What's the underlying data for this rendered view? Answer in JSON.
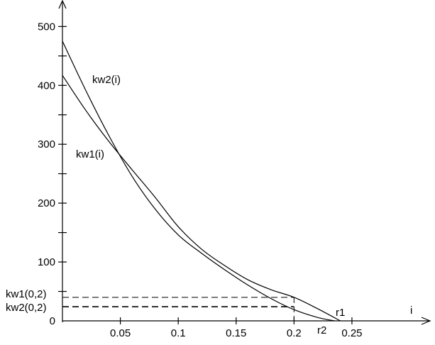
{
  "chart_data": {
    "type": "line",
    "title": "",
    "xlabel": "i",
    "ylabel": "",
    "xlim": [
      0,
      0.315
    ],
    "ylim": [
      0,
      545
    ],
    "x_ticks": [
      0.05,
      0.1,
      0.15,
      0.2,
      0.25
    ],
    "x_tick_labels": [
      "0.05",
      "0.1",
      "0.15",
      "0.2",
      "0.25"
    ],
    "y_ticks": [
      0,
      100,
      200,
      300,
      400,
      500
    ],
    "y_tick_labels": [
      "0",
      "100",
      "200",
      "300",
      "400",
      "500"
    ],
    "grid": false,
    "series": [
      {
        "name": "kw1(i)",
        "x": [
          0,
          0.02,
          0.04,
          0.06,
          0.08,
          0.1,
          0.12,
          0.14,
          0.16,
          0.18,
          0.2,
          0.22,
          0.24
        ],
        "y": [
          417,
          358,
          305,
          257,
          210,
          160,
          122,
          94,
          70,
          53,
          40,
          21,
          0
        ]
      },
      {
        "name": "kw2(i)",
        "x": [
          0,
          0.02,
          0.04,
          0.06,
          0.08,
          0.1,
          0.12,
          0.14,
          0.16,
          0.18,
          0.2,
          0.22,
          0.235
        ],
        "y": [
          475,
          392,
          315,
          246,
          190,
          146,
          115,
          87,
          61,
          38,
          19,
          6,
          0
        ]
      }
    ],
    "annotations": [
      {
        "text": "kw1(0,2)",
        "x": 0.2,
        "y": 40
      },
      {
        "text": "kw2(0,2)",
        "x": 0.2,
        "y": 24
      },
      {
        "text": "r1",
        "x": 0.24,
        "y": 0
      },
      {
        "text": "r2",
        "x": 0.225,
        "y": 0
      }
    ]
  }
}
